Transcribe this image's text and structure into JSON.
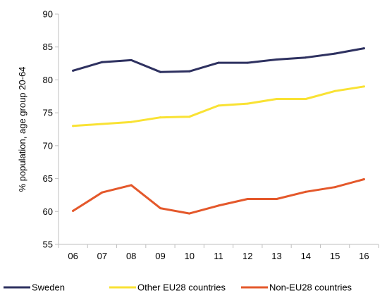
{
  "chart_data": {
    "type": "line",
    "title": "",
    "xlabel": "",
    "ylabel": "% population, age group 20-64",
    "categories": [
      "06",
      "07",
      "08",
      "09",
      "10",
      "11",
      "12",
      "13",
      "14",
      "15",
      "16"
    ],
    "ylim": [
      55,
      90
    ],
    "yticks": [
      55,
      60,
      65,
      70,
      75,
      80,
      85,
      90
    ],
    "grid": false,
    "legend_position": "bottom",
    "series": [
      {
        "name": "Sweden",
        "color": "#2E3160",
        "values": [
          81.4,
          82.7,
          83.0,
          81.2,
          81.3,
          82.6,
          82.6,
          83.1,
          83.4,
          84.0,
          84.8
        ]
      },
      {
        "name": "Other EU28 countries",
        "color": "#F9E234",
        "values": [
          73.0,
          73.3,
          73.6,
          74.3,
          74.4,
          76.1,
          76.4,
          77.1,
          77.1,
          78.3,
          79.0
        ]
      },
      {
        "name": "Non-EU28 countries",
        "color": "#E4582B",
        "values": [
          60.1,
          62.9,
          64.0,
          60.5,
          59.7,
          60.9,
          61.9,
          61.9,
          63.0,
          63.7,
          64.9
        ]
      }
    ]
  }
}
